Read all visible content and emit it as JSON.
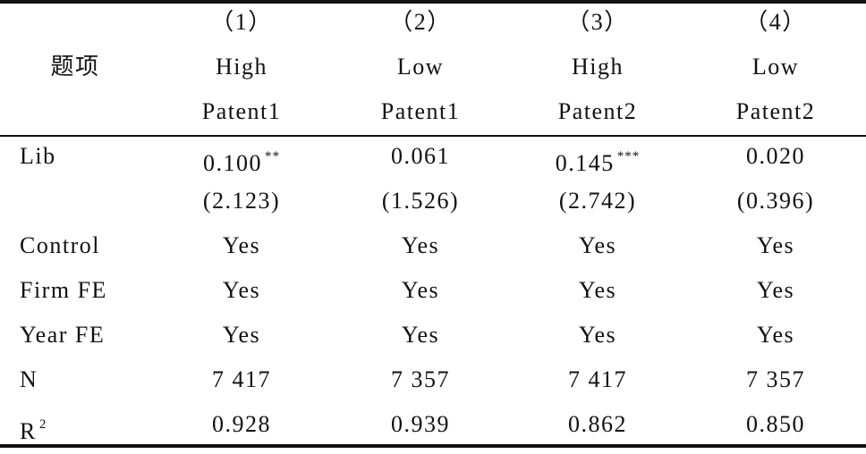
{
  "header": {
    "stub": "题项",
    "columns": [
      {
        "number": "（1）",
        "lines": [
          "High",
          "Patent1"
        ]
      },
      {
        "number": "（2）",
        "lines": [
          "Low",
          "Patent1"
        ]
      },
      {
        "number": "（3）",
        "lines": [
          "High",
          "Patent2"
        ]
      },
      {
        "number": "（4）",
        "lines": [
          "Low",
          "Patent2"
        ]
      }
    ]
  },
  "rows": [
    {
      "label": "Lib",
      "cells": [
        {
          "text": "0.100",
          "stars": "**"
        },
        "0.061",
        {
          "text": "0.145",
          "stars": "***"
        },
        "0.020"
      ]
    },
    {
      "label": "",
      "cells": [
        "(2.123)",
        "(1.526)",
        "(2.742)",
        "(0.396)"
      ]
    },
    {
      "label": "Control",
      "cells": [
        "Yes",
        "Yes",
        "Yes",
        "Yes"
      ]
    },
    {
      "label": "Firm FE",
      "cells": [
        "Yes",
        "Yes",
        "Yes",
        "Yes"
      ]
    },
    {
      "label": "Year FE",
      "cells": [
        "Yes",
        "Yes",
        "Yes",
        "Yes"
      ]
    },
    {
      "label": "N",
      "cells": [
        "7 417",
        "7 357",
        "7 417",
        "7 357"
      ]
    },
    {
      "label": "R",
      "label_sup": "2",
      "cells": [
        "0.928",
        "0.939",
        "0.862",
        "0.850"
      ]
    }
  ]
}
